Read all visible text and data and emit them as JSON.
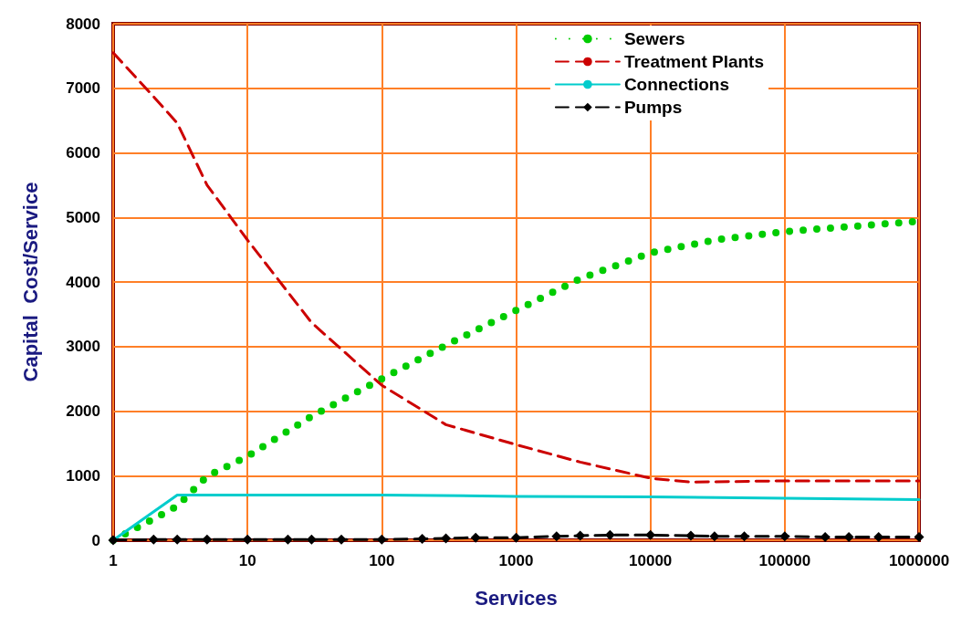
{
  "chart_data": {
    "type": "line",
    "xlabel": "Services",
    "ylabel": "Capital  Cost/Service",
    "log": "x",
    "xlim": [
      1,
      1000000
    ],
    "xticks": [
      1,
      10,
      100,
      1000,
      10000,
      100000,
      1000000
    ],
    "ylim": [
      0,
      8000
    ],
    "yticks": [
      0,
      1000,
      2000,
      3000,
      4000,
      5000,
      6000,
      7000,
      8000
    ],
    "grid": true,
    "legend": "top right",
    "series": [
      {
        "name": "Sewers",
        "color": "#00cc00",
        "line_style": "dotted",
        "marker": "none",
        "x": [
          1,
          2,
          3,
          5,
          10,
          30,
          100,
          300,
          1000,
          3000,
          10000,
          30000,
          100000,
          1000000
        ],
        "values": [
          0,
          330,
          530,
          990,
          1300,
          1920,
          2500,
          3020,
          3560,
          4050,
          4450,
          4650,
          4780,
          4940
        ]
      },
      {
        "name": "Treatment Plants",
        "color": "#cc0000",
        "line_style": "dashed",
        "marker": "none",
        "x": [
          1,
          2,
          3,
          5,
          10,
          30,
          100,
          300,
          1000,
          3000,
          10000,
          20000,
          100000,
          1000000
        ],
        "values": [
          7550,
          6870,
          6460,
          5500,
          4650,
          3370,
          2400,
          1790,
          1480,
          1210,
          960,
          900,
          920,
          920
        ]
      },
      {
        "name": "Connections",
        "color": "#00cccc",
        "line_style": "solid",
        "marker": "none",
        "x": [
          1,
          3,
          100,
          1000,
          10000,
          100000,
          1000000
        ],
        "values": [
          0,
          700,
          700,
          680,
          670,
          650,
          630
        ]
      },
      {
        "name": "Pumps",
        "color": "#000000",
        "line_style": "dashed",
        "marker": "diamond",
        "x": [
          1,
          2,
          3,
          5,
          10,
          20,
          30,
          50,
          100,
          200,
          300,
          500,
          1000,
          2000,
          3000,
          5000,
          10000,
          20000,
          30000,
          50000,
          100000,
          200000,
          300000,
          500000,
          1000000
        ],
        "values": [
          0,
          10,
          10,
          10,
          10,
          10,
          10,
          10,
          10,
          20,
          30,
          40,
          40,
          60,
          70,
          80,
          80,
          70,
          60,
          60,
          60,
          50,
          50,
          50,
          50
        ]
      }
    ]
  }
}
